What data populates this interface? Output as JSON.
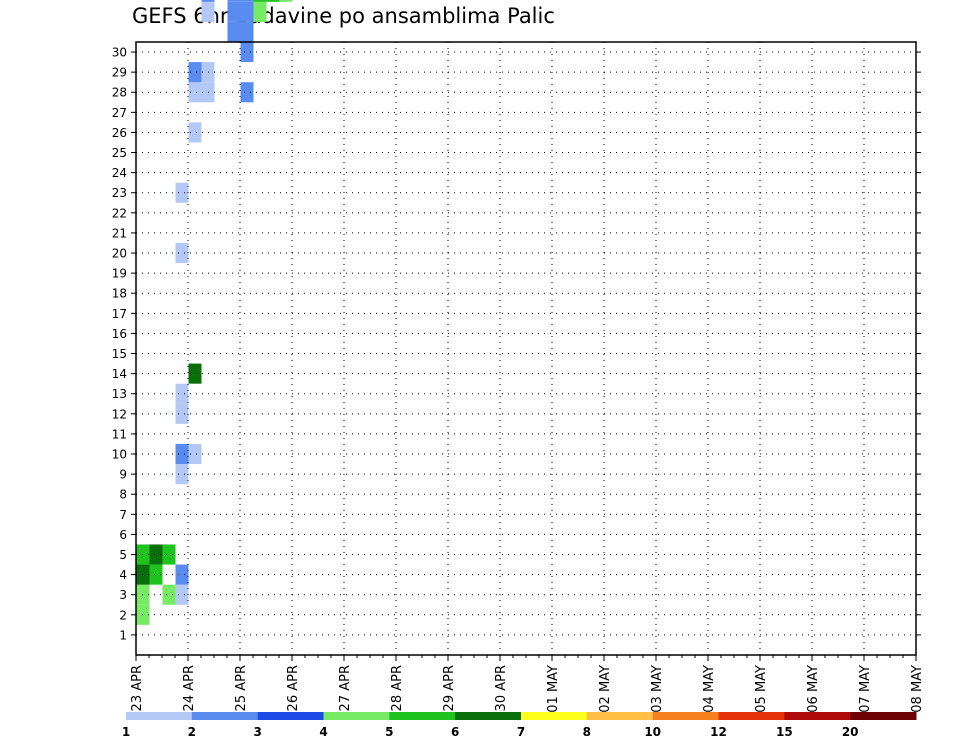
{
  "chart_data": {
    "type": "heatmap",
    "title": "GEFS 6hr padavine po ansamblima Palic",
    "y_categories": [
      "1",
      "2",
      "3",
      "4",
      "5",
      "6",
      "7",
      "8",
      "9",
      "10",
      "11",
      "12",
      "13",
      "14",
      "15",
      "16",
      "17",
      "18",
      "19",
      "20",
      "21",
      "22",
      "23",
      "24",
      "25",
      "26",
      "27",
      "28",
      "29",
      "30"
    ],
    "x_tick_labels": [
      "23 APR",
      "24 APR",
      "25 APR",
      "26 APR",
      "27 APR",
      "28 APR",
      "29 APR",
      "30 APR",
      "01 MAY",
      "02 MAY",
      "03 MAY",
      "04 MAY",
      "05 MAY",
      "06 MAY",
      "07 MAY",
      "08 MAY"
    ],
    "time_steps_per_day": 4,
    "grid": true,
    "colorbar": {
      "levels": [
        "1",
        "2",
        "3",
        "4",
        "5",
        "6",
        "7",
        "8",
        "10",
        "12",
        "15",
        "20"
      ],
      "colors": [
        "#b4c8f5",
        "#5a8cf0",
        "#1e4be6",
        "#78eb64",
        "#1ec31e",
        "#0a6e0a",
        "#ffff1e",
        "#ffbe46",
        "#f5821e",
        "#e6320a",
        "#af0a0a",
        "#6e0505"
      ]
    },
    "cells": [
      [
        1,
        0,
        3
      ],
      [
        2,
        0,
        3
      ],
      [
        3,
        0,
        5
      ],
      [
        4,
        0,
        4
      ],
      [
        2,
        2,
        3
      ],
      [
        4,
        2,
        4
      ],
      [
        3,
        1,
        4
      ],
      [
        4,
        1,
        5
      ],
      [
        2,
        3,
        0
      ],
      [
        3,
        3,
        1
      ],
      [
        8,
        3,
        0
      ],
      [
        9,
        3,
        1
      ],
      [
        11,
        3,
        0
      ],
      [
        12,
        3,
        0
      ],
      [
        19,
        3,
        0
      ],
      [
        22,
        3,
        0
      ],
      [
        9,
        4,
        0
      ],
      [
        13,
        4,
        5
      ],
      [
        25,
        4,
        0
      ],
      [
        27,
        4,
        0
      ],
      [
        28,
        4,
        1
      ],
      [
        35,
        4,
        0
      ],
      [
        27,
        5,
        0
      ],
      [
        28,
        5,
        0
      ],
      [
        31,
        5,
        0
      ],
      [
        32,
        5,
        1
      ],
      [
        33,
        5,
        0
      ],
      [
        34,
        5,
        0
      ],
      [
        35,
        5,
        0
      ],
      [
        34,
        6,
        0
      ],
      [
        35,
        6,
        3
      ],
      [
        30,
        7,
        1
      ],
      [
        31,
        7,
        1
      ],
      [
        32,
        7,
        1
      ],
      [
        35,
        7,
        0
      ],
      [
        36,
        7,
        0
      ],
      [
        37,
        7,
        0
      ],
      [
        38,
        7,
        4
      ],
      [
        39,
        7,
        2
      ],
      [
        40,
        7,
        1
      ],
      [
        41,
        7,
        0
      ],
      [
        42,
        7,
        0
      ],
      [
        45,
        7,
        0
      ],
      [
        27,
        8,
        1
      ],
      [
        29,
        8,
        1
      ],
      [
        30,
        8,
        1
      ],
      [
        31,
        8,
        1
      ],
      [
        32,
        8,
        1
      ],
      [
        33,
        8,
        1
      ],
      [
        34,
        8,
        1
      ],
      [
        35,
        8,
        0
      ],
      [
        36,
        8,
        0
      ],
      [
        37,
        8,
        0
      ],
      [
        38,
        8,
        0
      ],
      [
        39,
        8,
        1
      ],
      [
        40,
        8,
        1
      ],
      [
        41,
        8,
        0
      ],
      [
        42,
        8,
        1
      ],
      [
        43,
        8,
        0
      ],
      [
        44,
        8,
        0
      ],
      [
        31,
        9,
        3
      ],
      [
        32,
        9,
        4
      ],
      [
        33,
        9,
        5
      ],
      [
        34,
        9,
        5
      ],
      [
        35,
        9,
        5
      ],
      [
        36,
        9,
        2
      ],
      [
        37,
        9,
        2
      ],
      [
        38,
        9,
        2
      ],
      [
        39,
        9,
        2
      ],
      [
        40,
        9,
        2
      ],
      [
        41,
        9,
        2
      ],
      [
        42,
        9,
        1
      ],
      [
        45,
        9,
        0
      ],
      [
        32,
        10,
        4
      ],
      [
        33,
        10,
        2
      ],
      [
        34,
        10,
        0
      ],
      [
        35,
        10,
        1
      ],
      [
        39,
        10,
        0
      ],
      [
        40,
        10,
        0
      ],
      [
        41,
        10,
        1
      ],
      [
        42,
        10,
        1
      ],
      [
        43,
        10,
        0
      ],
      [
        44,
        10,
        0
      ],
      [
        45,
        10,
        0
      ],
      [
        32,
        11,
        3
      ],
      [
        33,
        11,
        1
      ],
      [
        34,
        11,
        1
      ],
      [
        35,
        11,
        1
      ],
      [
        37,
        11,
        0
      ],
      [
        38,
        11,
        0
      ],
      [
        39,
        11,
        2
      ],
      [
        40,
        11,
        1
      ],
      [
        41,
        11,
        0
      ],
      [
        42,
        11,
        0
      ],
      [
        43,
        11,
        0
      ],
      [
        45,
        11,
        0
      ],
      [
        33,
        12,
        1
      ],
      [
        36,
        12,
        0
      ],
      [
        37,
        12,
        1
      ],
      [
        38,
        12,
        0
      ],
      [
        40,
        12,
        0
      ],
      [
        41,
        12,
        1
      ],
      [
        35,
        13,
        1
      ],
      [
        36,
        13,
        0
      ],
      [
        37,
        13,
        1
      ],
      [
        38,
        13,
        1
      ],
      [
        39,
        13,
        0
      ],
      [
        40,
        13,
        0
      ],
      [
        41,
        13,
        1
      ],
      [
        42,
        13,
        1
      ],
      [
        43,
        13,
        1
      ],
      [
        44,
        13,
        0
      ],
      [
        45,
        13,
        0
      ],
      [
        35,
        14,
        1
      ],
      [
        36,
        14,
        1
      ],
      [
        37,
        14,
        0
      ],
      [
        38,
        14,
        0
      ],
      [
        40,
        14,
        0
      ],
      [
        41,
        14,
        1
      ],
      [
        42,
        14,
        0
      ],
      [
        43,
        14,
        0
      ],
      [
        44,
        14,
        0
      ],
      [
        36,
        15,
        2
      ],
      [
        37,
        15,
        1
      ],
      [
        38,
        15,
        1
      ],
      [
        39,
        15,
        0
      ],
      [
        41,
        15,
        0
      ],
      [
        42,
        15,
        1
      ],
      [
        43,
        15,
        0
      ],
      [
        44,
        15,
        0
      ],
      [
        45,
        15,
        0
      ],
      [
        37,
        16,
        2
      ],
      [
        38,
        16,
        1
      ],
      [
        40,
        16,
        0
      ],
      [
        41,
        16,
        0
      ],
      [
        42,
        16,
        1
      ],
      [
        43,
        16,
        0
      ],
      [
        38,
        17,
        0
      ],
      [
        39,
        17,
        1
      ],
      [
        40,
        17,
        0
      ],
      [
        41,
        17,
        0
      ],
      [
        42,
        17,
        1
      ],
      [
        43,
        17,
        0
      ],
      [
        38,
        18,
        0
      ],
      [
        39,
        18,
        1
      ],
      [
        40,
        18,
        0
      ],
      [
        41,
        18,
        1
      ],
      [
        42,
        18,
        0
      ],
      [
        39,
        19,
        0
      ],
      [
        40,
        19,
        1
      ],
      [
        41,
        19,
        1
      ],
      [
        42,
        19,
        0
      ],
      [
        40,
        20,
        0
      ],
      [
        41,
        20,
        2
      ],
      [
        42,
        20,
        1
      ]
    ]
  }
}
